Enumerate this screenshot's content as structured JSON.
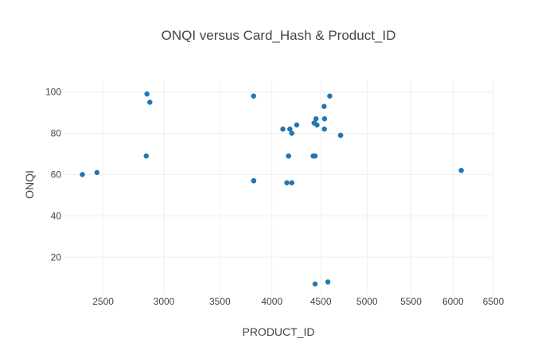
{
  "chart_data": {
    "type": "scatter",
    "title": "ONQI versus Card_Hash & Product_ID",
    "xlabel": "PRODUCT_ID",
    "ylabel": "ONQI",
    "xscale": "sqrt",
    "xlim": [
      2200,
      6500
    ],
    "ylim": [
      2,
      106
    ],
    "xticks": [
      2500,
      3000,
      3500,
      4000,
      4500,
      5000,
      5500,
      6000,
      6500
    ],
    "yticks": [
      20,
      40,
      60,
      80,
      100
    ],
    "grid": true,
    "legend": "none",
    "marker_color": "#1f77b4",
    "points": [
      {
        "x": 2340,
        "y": 60
      },
      {
        "x": 2452,
        "y": 61
      },
      {
        "x": 2856,
        "y": 99
      },
      {
        "x": 2850,
        "y": 69
      },
      {
        "x": 2880,
        "y": 95
      },
      {
        "x": 3820,
        "y": 98
      },
      {
        "x": 3820,
        "y": 57
      },
      {
        "x": 3822,
        "y": 57
      },
      {
        "x": 4110,
        "y": 82
      },
      {
        "x": 4150,
        "y": 56
      },
      {
        "x": 4166,
        "y": 69
      },
      {
        "x": 4168,
        "y": 69
      },
      {
        "x": 4180,
        "y": 82
      },
      {
        "x": 4200,
        "y": 80
      },
      {
        "x": 4200,
        "y": 56
      },
      {
        "x": 4250,
        "y": 84
      },
      {
        "x": 4420,
        "y": 69
      },
      {
        "x": 4422,
        "y": 69
      },
      {
        "x": 4440,
        "y": 69
      },
      {
        "x": 4430,
        "y": 85
      },
      {
        "x": 4450,
        "y": 87
      },
      {
        "x": 4460,
        "y": 84
      },
      {
        "x": 4440,
        "y": 7
      },
      {
        "x": 4535,
        "y": 93
      },
      {
        "x": 4540,
        "y": 87
      },
      {
        "x": 4538,
        "y": 82
      },
      {
        "x": 4575,
        "y": 8
      },
      {
        "x": 4595,
        "y": 98
      },
      {
        "x": 4710,
        "y": 79
      },
      {
        "x": 4712,
        "y": 79
      },
      {
        "x": 6100,
        "y": 62
      }
    ]
  }
}
